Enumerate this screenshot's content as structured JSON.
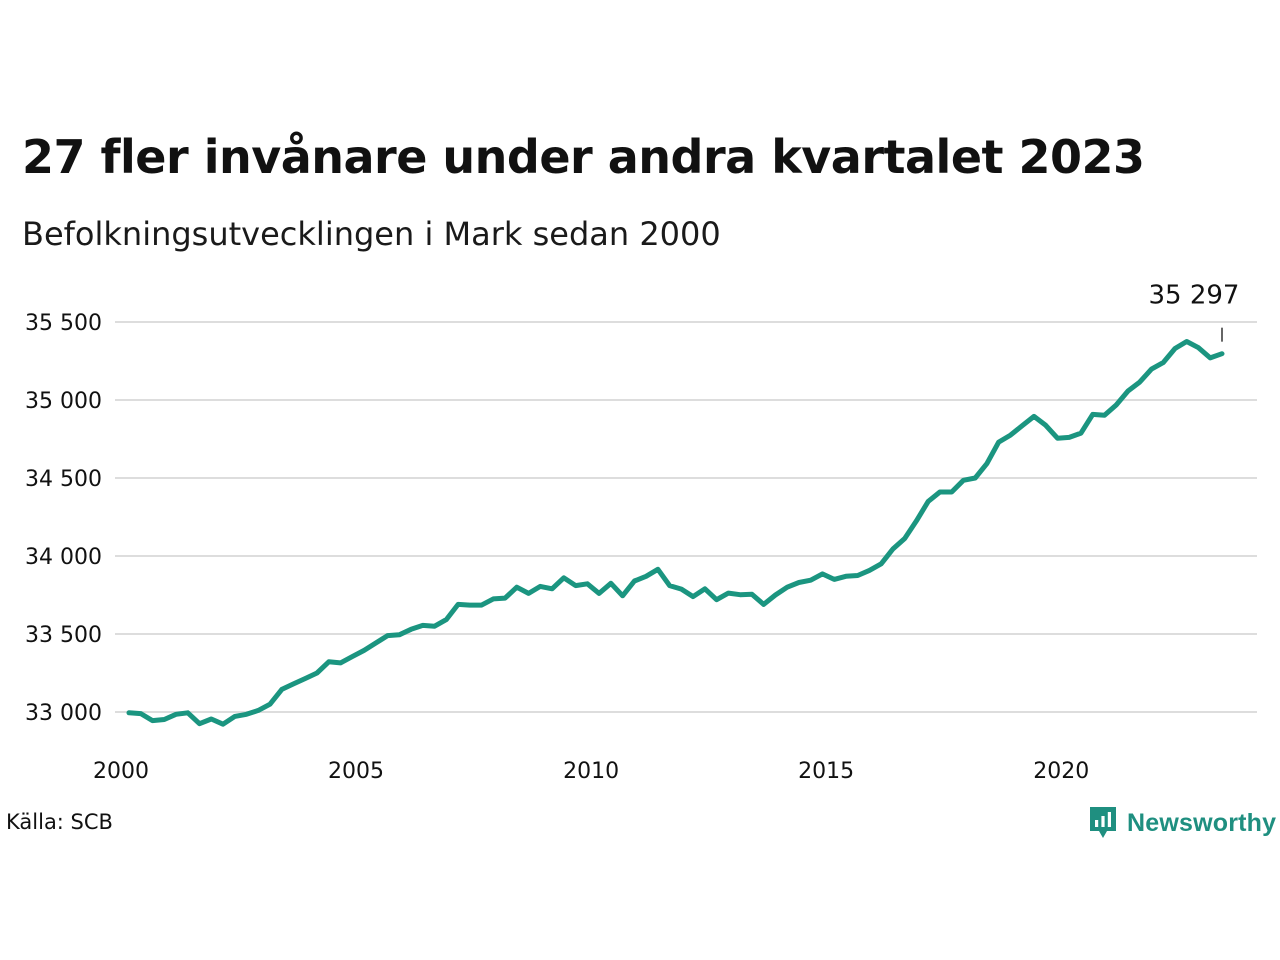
{
  "title": "27 fler invånare under andra kvartalet 2023",
  "subtitle": "Befolkningsutvecklingen i Mark sedan 2000",
  "source": "Källa: SCB",
  "brand": {
    "name": "Newsworthy",
    "icon": "newsworthy-logo-icon",
    "color": "#1f8f80"
  },
  "chart_data": {
    "type": "line",
    "title": "27 fler invånare under andra kvartalet 2023",
    "subtitle": "Befolkningsutvecklingen i Mark sedan 2000",
    "xlabel": "",
    "ylabel": "",
    "x_ticks": [
      "2000",
      "2005",
      "2010",
      "2015",
      "2020"
    ],
    "y_ticks": [
      "33 000",
      "33 500",
      "34 000",
      "34 500",
      "35 000",
      "35 500"
    ],
    "xlim": [
      2000,
      2024
    ],
    "ylim": [
      32800,
      35720
    ],
    "grid": "horizontal",
    "color": "#1b9580",
    "end_label": "35 297",
    "series": [
      {
        "x": [
          2000.0,
          2000.25,
          2000.5,
          2000.75,
          2001.0,
          2001.25,
          2001.5,
          2001.75,
          2002.0,
          2002.25,
          2002.5,
          2002.75,
          2003.0,
          2003.25,
          2003.5,
          2003.75,
          2004.0,
          2004.25,
          2004.5,
          2004.75,
          2005.0,
          2005.25,
          2005.5,
          2005.75,
          2006.0,
          2006.25,
          2006.5,
          2006.75,
          2007.0,
          2007.25,
          2007.5,
          2007.75,
          2008.0,
          2008.25,
          2008.5,
          2008.75,
          2009.0,
          2009.25,
          2009.5,
          2009.75,
          2010.0,
          2010.25,
          2010.5,
          2010.75,
          2011.0,
          2011.25,
          2011.5,
          2011.75,
          2012.0,
          2012.25,
          2012.5,
          2012.75,
          2013.0,
          2013.25,
          2013.5,
          2013.75,
          2014.0,
          2014.25,
          2014.5,
          2014.75,
          2015.0,
          2015.25,
          2015.5,
          2015.75,
          2016.0,
          2016.25,
          2016.5,
          2016.75,
          2017.0,
          2017.25,
          2017.5,
          2017.75,
          2018.0,
          2018.25,
          2018.5,
          2018.75,
          2019.0,
          2019.25,
          2019.5,
          2019.75,
          2020.0,
          2020.25,
          2020.5,
          2020.75,
          2021.0,
          2021.25,
          2021.5,
          2021.75,
          2022.0,
          2022.25,
          2022.5,
          2022.75,
          2023.0,
          2023.25
        ],
        "values": [
          32995,
          32990,
          32945,
          32952,
          32985,
          32995,
          32925,
          32955,
          32922,
          32972,
          32985,
          33010,
          33050,
          33145,
          33180,
          33215,
          33250,
          33322,
          33315,
          33355,
          33395,
          33442,
          33490,
          33495,
          33530,
          33555,
          33550,
          33592,
          33690,
          33685,
          33685,
          33725,
          33730,
          33800,
          33760,
          33805,
          33790,
          33860,
          33810,
          33822,
          33760,
          33825,
          33745,
          33840,
          33870,
          33915,
          33810,
          33788,
          33740,
          33790,
          33720,
          33762,
          33752,
          33755,
          33690,
          33750,
          33800,
          33830,
          33845,
          33885,
          33850,
          33870,
          33875,
          33908,
          33950,
          34045,
          34112,
          34225,
          34350,
          34410,
          34410,
          34485,
          34500,
          34592,
          34730,
          34775,
          34835,
          34895,
          34838,
          34755,
          34760,
          34788,
          34908,
          34902,
          34968,
          35058,
          35115,
          35198,
          35240,
          35330,
          35375,
          35335,
          35270,
          35297
        ]
      }
    ]
  }
}
